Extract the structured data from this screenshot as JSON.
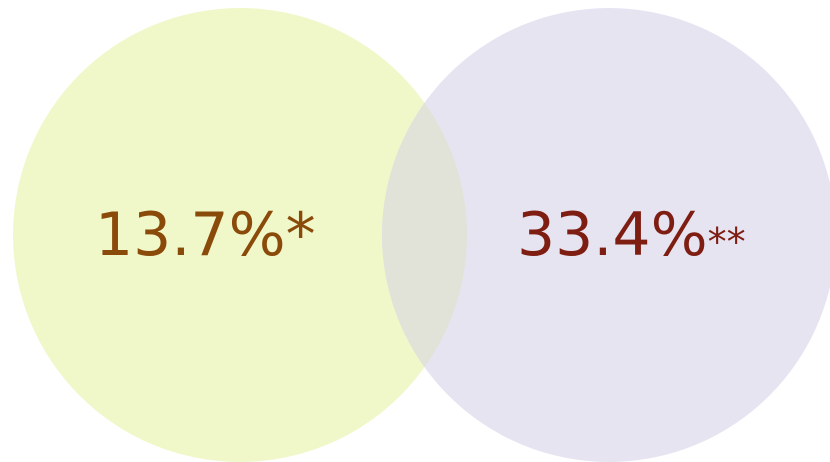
{
  "nodes": [
    {
      "label": "13.7%",
      "note": "*"
    },
    {
      "label": "33.4%",
      "note": "**"
    }
  ]
}
